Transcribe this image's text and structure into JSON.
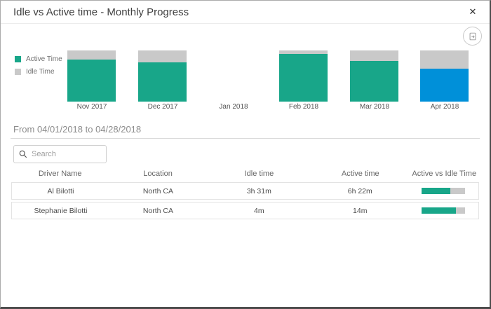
{
  "dialog": {
    "title": "Idle vs Active time - Monthly Progress",
    "close_glyph": "✕"
  },
  "toolbar": {
    "export_icon": "export-report-icon"
  },
  "chart_data": {
    "type": "bar",
    "stacked": true,
    "percent_stacked": true,
    "categories": [
      "Nov 2017",
      "Dec 2017",
      "Jan 2018",
      "Feb 2018",
      "Mar 2018",
      "Apr 2018"
    ],
    "series": [
      {
        "name": "Active Time",
        "values": [
          82,
          77,
          null,
          93,
          79,
          64
        ]
      },
      {
        "name": "Idle Time",
        "values": [
          18,
          23,
          null,
          7,
          21,
          36
        ]
      }
    ],
    "selected_category": "Apr 2018",
    "colors": {
      "active": "#18a689",
      "idle": "#c9c9c9",
      "selected_active": "#0090d9"
    },
    "legend_position": "left",
    "ylim": [
      0,
      100
    ],
    "grid": false
  },
  "period": {
    "label": "From 04/01/2018 to 04/28/2018"
  },
  "search": {
    "placeholder": "Search"
  },
  "table": {
    "columns": [
      "Driver Name",
      "Location",
      "Idle time",
      "Active time",
      "Active vs Idle Time"
    ],
    "rows": [
      {
        "driver": "Al Bilotti",
        "location": "North CA",
        "idle": "3h 31m",
        "active": "6h 22m",
        "active_pct": 65
      },
      {
        "driver": "Stephanie Bilotti",
        "location": "North CA",
        "idle": "4m",
        "active": "14m",
        "active_pct": 78
      }
    ]
  },
  "colors": {
    "accent_teal": "#18a689",
    "accent_blue": "#0090d9",
    "idle_gray": "#c9c9c9",
    "idle_value_orange": "#e8744f",
    "border_dark": "#4d4d4d"
  }
}
